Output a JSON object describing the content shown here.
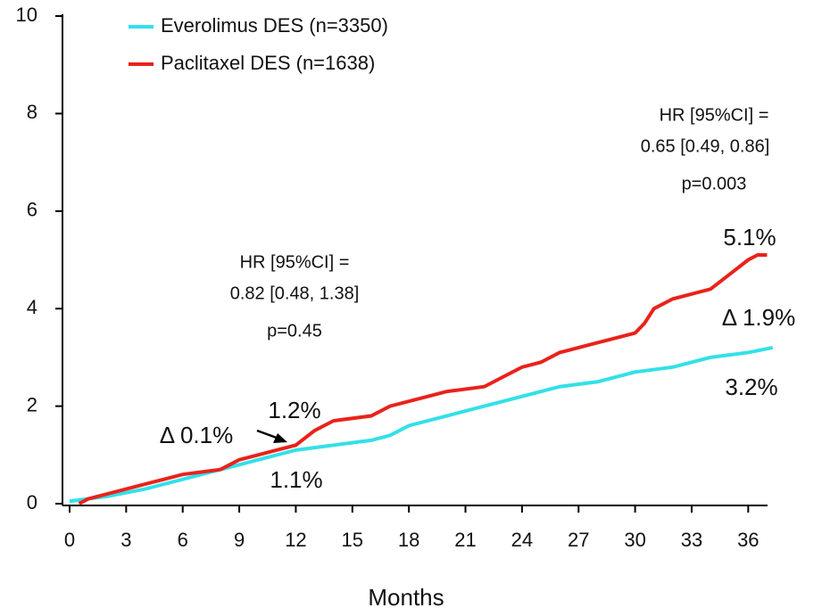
{
  "chart_data": {
    "type": "line",
    "x_label": "Months",
    "xlim": [
      0,
      37.5
    ],
    "xticks": [
      0,
      3,
      6,
      9,
      12,
      15,
      18,
      21,
      24,
      27,
      30,
      33,
      36
    ],
    "ylim": [
      0,
      10
    ],
    "yticks": [
      0,
      2,
      4,
      6,
      8,
      10
    ],
    "series": [
      {
        "name": "Everolimus DES (n=3350)",
        "color": "#33e0e8",
        "x": [
          0,
          2,
          4,
          6,
          8,
          10,
          12,
          14,
          16,
          17,
          18,
          20,
          22,
          24,
          26,
          28,
          30,
          32,
          34,
          36,
          37.3
        ],
        "values": [
          0.05,
          0.15,
          0.3,
          0.5,
          0.7,
          0.9,
          1.1,
          1.2,
          1.3,
          1.4,
          1.6,
          1.8,
          2.0,
          2.2,
          2.4,
          2.5,
          2.7,
          2.8,
          3.0,
          3.1,
          3.2
        ]
      },
      {
        "name": "Paclitaxel DES (n=1638)",
        "color": "#e8231c",
        "x": [
          0.5,
          1,
          2,
          3,
          4,
          5,
          6,
          8,
          9,
          10,
          11,
          12,
          13,
          14,
          16,
          17,
          19,
          20,
          22,
          23,
          24,
          25,
          26,
          27,
          28,
          30,
          30.5,
          31,
          32,
          34,
          35,
          36,
          36.5,
          37
        ],
        "values": [
          0,
          0.1,
          0.2,
          0.3,
          0.4,
          0.5,
          0.6,
          0.7,
          0.9,
          1.0,
          1.1,
          1.2,
          1.5,
          1.7,
          1.8,
          2.0,
          2.2,
          2.3,
          2.4,
          2.6,
          2.8,
          2.9,
          3.1,
          3.2,
          3.3,
          3.5,
          3.7,
          4.0,
          4.2,
          4.4,
          4.7,
          5.0,
          5.1,
          5.1
        ]
      }
    ],
    "annotations": [
      "HR [95%CI] =",
      "0.82 [0.48, 1.38]",
      "p=0.45",
      "HR [95%CI] =",
      "0.65 [0.49, 0.86]",
      "p=0.003",
      "5.1%",
      "Δ 1.9%",
      "3.2%",
      "1.2%",
      "Δ 0.1%",
      "1.1%"
    ]
  }
}
